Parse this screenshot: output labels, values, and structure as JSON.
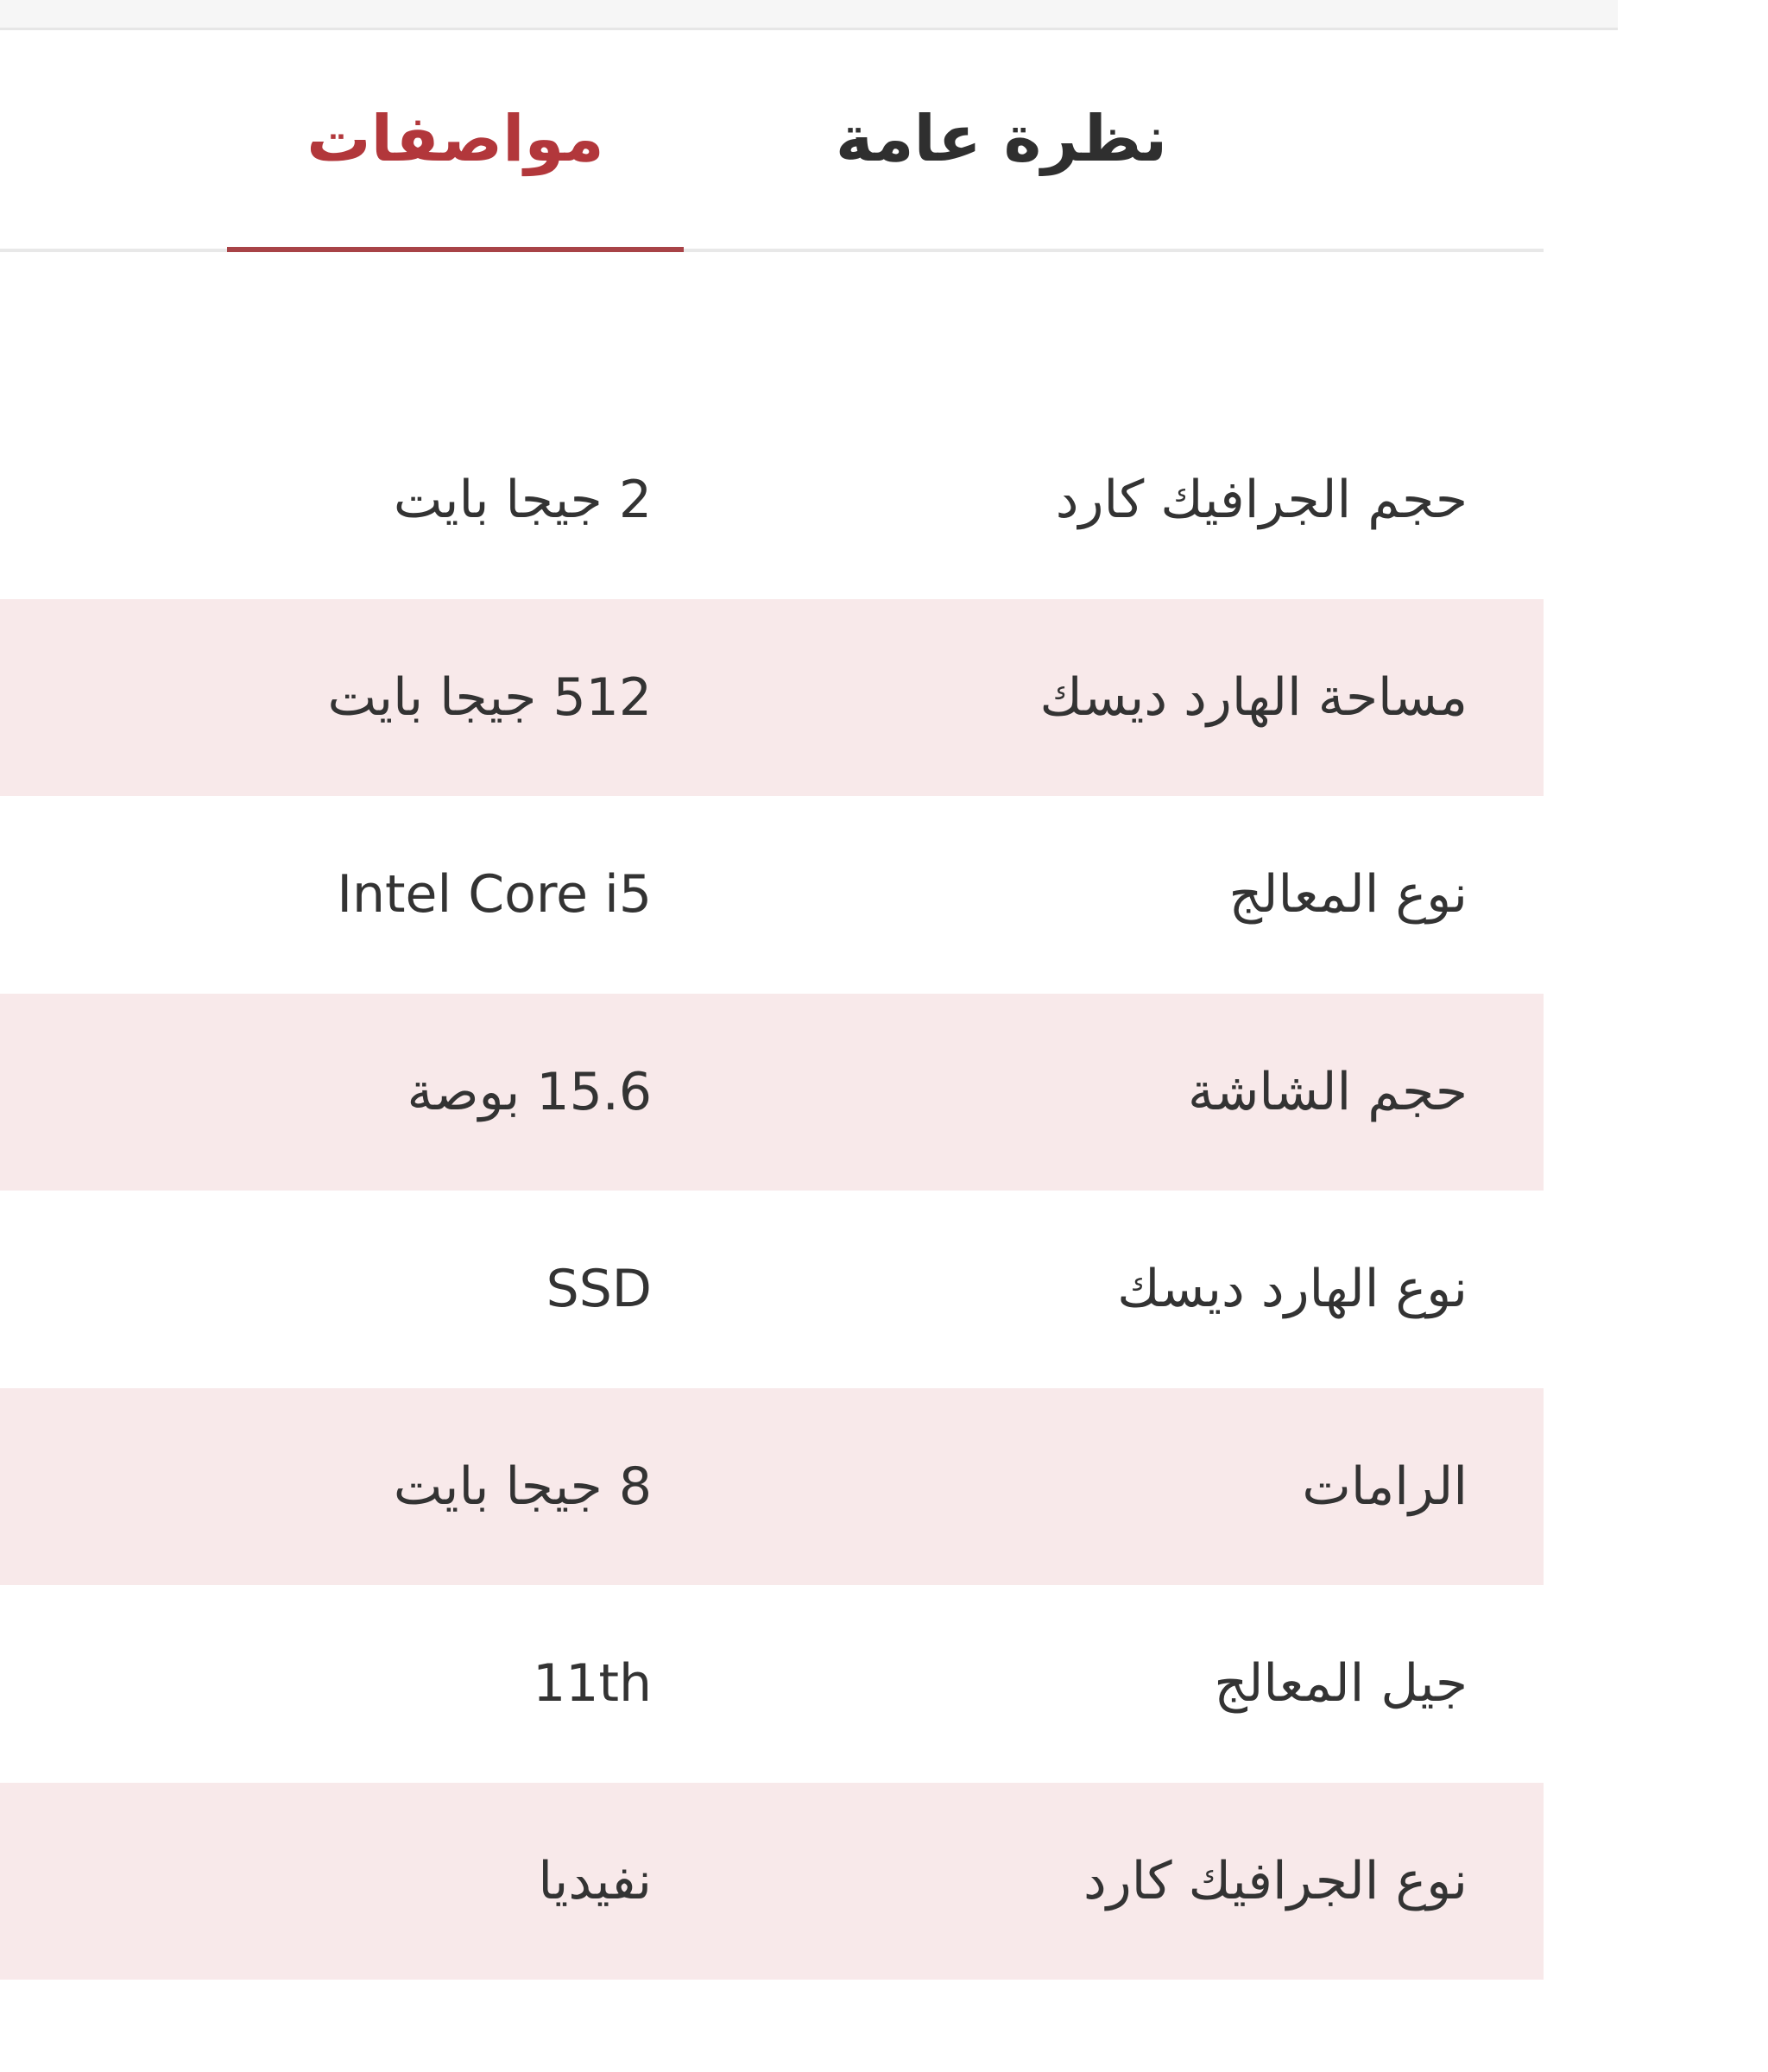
{
  "tabs": [
    {
      "label": "نظرة عامة",
      "active": false
    },
    {
      "label": "مواصفات",
      "active": true
    }
  ],
  "colors": {
    "accent": "#b2373b",
    "stripe": "#f8e9ea"
  },
  "specs": [
    {
      "label": "حجم الجرافيك كارد",
      "value": "2 جيجا بايت"
    },
    {
      "label": "مساحة الهارد ديسك",
      "value": "512 جيجا بايت"
    },
    {
      "label": "نوع المعالج",
      "value": "Intel Core i5"
    },
    {
      "label": "حجم الشاشة",
      "value": "15.6 بوصة"
    },
    {
      "label": "نوع الهارد ديسك",
      "value": "SSD"
    },
    {
      "label": "الرامات",
      "value": "8 جيجا بايت"
    },
    {
      "label": "جيل المعالج",
      "value": "11th"
    },
    {
      "label": "نوع الجرافيك كارد",
      "value": "نفيديا"
    }
  ]
}
